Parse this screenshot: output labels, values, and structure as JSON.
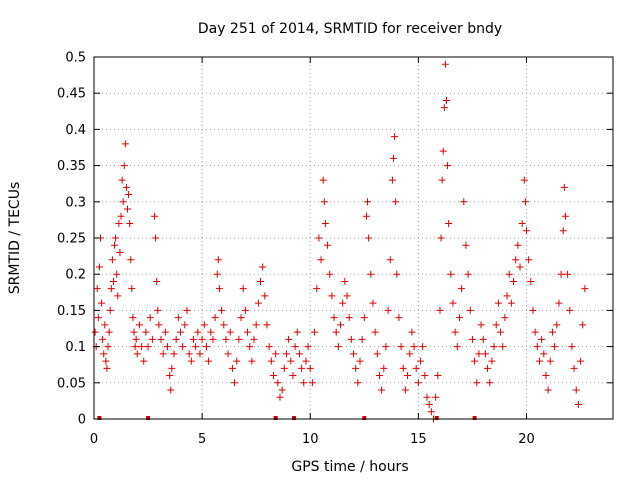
{
  "chart_data": {
    "type": "scatter",
    "title": "Day 251 of 2014, SRMTID for receiver bndy",
    "xlabel": "GPS time / hours",
    "ylabel": "SRMTID / TECUs",
    "xlim": [
      0,
      24
    ],
    "ylim": [
      0,
      0.5
    ],
    "xticks": [
      0,
      5,
      10,
      15,
      20
    ],
    "xtick_labels": [
      "0",
      "5",
      "10",
      "15",
      "20"
    ],
    "yticks": [
      0,
      0.05,
      0.1,
      0.15,
      0.2,
      0.25,
      0.3,
      0.35,
      0.4,
      0.45,
      0.5
    ],
    "ytick_labels": [
      "0",
      "0.05",
      "0.1",
      "0.15",
      "0.2",
      "0.25",
      "0.3",
      "0.35",
      "0.4",
      "0.45",
      "0.5"
    ],
    "grid": true,
    "marker": "+",
    "marker_color": "#e00000",
    "x_range_of_data": [
      0,
      22.7
    ],
    "zero_markers_x": [
      0.25,
      2.5,
      8.4,
      9.25,
      12.5,
      15.85,
      17.6
    ],
    "points": [
      [
        0.05,
        0.12
      ],
      [
        0.1,
        0.1
      ],
      [
        0.15,
        0.18
      ],
      [
        0.2,
        0.14
      ],
      [
        0.25,
        0.21
      ],
      [
        0.3,
        0.25
      ],
      [
        0.35,
        0.16
      ],
      [
        0.4,
        0.11
      ],
      [
        0.45,
        0.09
      ],
      [
        0.5,
        0.13
      ],
      [
        0.55,
        0.08
      ],
      [
        0.6,
        0.07
      ],
      [
        0.65,
        0.1
      ],
      [
        0.7,
        0.12
      ],
      [
        0.75,
        0.15
      ],
      [
        0.8,
        0.18
      ],
      [
        0.85,
        0.22
      ],
      [
        0.9,
        0.19
      ],
      [
        0.95,
        0.24
      ],
      [
        1.0,
        0.25
      ],
      [
        1.05,
        0.2
      ],
      [
        1.1,
        0.17
      ],
      [
        1.15,
        0.27
      ],
      [
        1.2,
        0.23
      ],
      [
        1.25,
        0.28
      ],
      [
        1.3,
        0.33
      ],
      [
        1.35,
        0.3
      ],
      [
        1.4,
        0.35
      ],
      [
        1.45,
        0.38
      ],
      [
        1.5,
        0.32
      ],
      [
        1.55,
        0.29
      ],
      [
        1.6,
        0.31
      ],
      [
        1.65,
        0.27
      ],
      [
        1.7,
        0.22
      ],
      [
        1.75,
        0.18
      ],
      [
        1.8,
        0.14
      ],
      [
        1.85,
        0.12
      ],
      [
        1.9,
        0.1
      ],
      [
        1.95,
        0.11
      ],
      [
        2.0,
        0.09
      ],
      [
        2.1,
        0.13
      ],
      [
        2.2,
        0.1
      ],
      [
        2.3,
        0.08
      ],
      [
        2.4,
        0.12
      ],
      [
        2.5,
        0.1
      ],
      [
        2.6,
        0.14
      ],
      [
        2.7,
        0.11
      ],
      [
        2.8,
        0.28
      ],
      [
        2.85,
        0.25
      ],
      [
        2.9,
        0.19
      ],
      [
        2.95,
        0.15
      ],
      [
        3.0,
        0.13
      ],
      [
        3.1,
        0.11
      ],
      [
        3.2,
        0.09
      ],
      [
        3.3,
        0.12
      ],
      [
        3.4,
        0.1
      ],
      [
        3.5,
        0.06
      ],
      [
        3.55,
        0.04
      ],
      [
        3.6,
        0.07
      ],
      [
        3.7,
        0.09
      ],
      [
        3.8,
        0.11
      ],
      [
        3.9,
        0.14
      ],
      [
        4.0,
        0.12
      ],
      [
        4.1,
        0.1
      ],
      [
        4.2,
        0.13
      ],
      [
        4.3,
        0.15
      ],
      [
        4.4,
        0.09
      ],
      [
        4.5,
        0.08
      ],
      [
        4.6,
        0.11
      ],
      [
        4.7,
        0.1
      ],
      [
        4.8,
        0.12
      ],
      [
        4.9,
        0.09
      ],
      [
        5.0,
        0.11
      ],
      [
        5.1,
        0.13
      ],
      [
        5.2,
        0.1
      ],
      [
        5.3,
        0.08
      ],
      [
        5.4,
        0.12
      ],
      [
        5.5,
        0.11
      ],
      [
        5.6,
        0.14
      ],
      [
        5.7,
        0.2
      ],
      [
        5.75,
        0.22
      ],
      [
        5.8,
        0.18
      ],
      [
        5.9,
        0.15
      ],
      [
        6.0,
        0.13
      ],
      [
        6.1,
        0.11
      ],
      [
        6.2,
        0.09
      ],
      [
        6.3,
        0.12
      ],
      [
        6.4,
        0.07
      ],
      [
        6.5,
        0.05
      ],
      [
        6.6,
        0.08
      ],
      [
        6.7,
        0.11
      ],
      [
        6.8,
        0.14
      ],
      [
        6.9,
        0.18
      ],
      [
        7.0,
        0.15
      ],
      [
        7.1,
        0.12
      ],
      [
        7.2,
        0.1
      ],
      [
        7.3,
        0.08
      ],
      [
        7.4,
        0.11
      ],
      [
        7.5,
        0.13
      ],
      [
        7.6,
        0.16
      ],
      [
        7.7,
        0.19
      ],
      [
        7.8,
        0.21
      ],
      [
        7.9,
        0.17
      ],
      [
        8.0,
        0.13
      ],
      [
        8.1,
        0.1
      ],
      [
        8.2,
        0.08
      ],
      [
        8.3,
        0.06
      ],
      [
        8.4,
        0.09
      ],
      [
        8.5,
        0.05
      ],
      [
        8.6,
        0.03
      ],
      [
        8.7,
        0.04
      ],
      [
        8.8,
        0.07
      ],
      [
        8.9,
        0.09
      ],
      [
        9.0,
        0.11
      ],
      [
        9.1,
        0.08
      ],
      [
        9.2,
        0.06
      ],
      [
        9.3,
        0.1
      ],
      [
        9.4,
        0.12
      ],
      [
        9.5,
        0.09
      ],
      [
        9.6,
        0.07
      ],
      [
        9.7,
        0.05
      ],
      [
        9.8,
        0.08
      ],
      [
        9.9,
        0.1
      ],
      [
        10.0,
        0.07
      ],
      [
        10.1,
        0.05
      ],
      [
        10.2,
        0.12
      ],
      [
        10.3,
        0.18
      ],
      [
        10.4,
        0.25
      ],
      [
        10.5,
        0.22
      ],
      [
        10.6,
        0.33
      ],
      [
        10.65,
        0.3
      ],
      [
        10.7,
        0.27
      ],
      [
        10.8,
        0.24
      ],
      [
        10.9,
        0.2
      ],
      [
        11.0,
        0.17
      ],
      [
        11.1,
        0.14
      ],
      [
        11.2,
        0.12
      ],
      [
        11.3,
        0.1
      ],
      [
        11.4,
        0.13
      ],
      [
        11.5,
        0.16
      ],
      [
        11.6,
        0.19
      ],
      [
        11.7,
        0.17
      ],
      [
        11.8,
        0.14
      ],
      [
        11.9,
        0.11
      ],
      [
        12.0,
        0.09
      ],
      [
        12.1,
        0.07
      ],
      [
        12.2,
        0.05
      ],
      [
        12.3,
        0.08
      ],
      [
        12.4,
        0.11
      ],
      [
        12.5,
        0.14
      ],
      [
        12.6,
        0.28
      ],
      [
        12.65,
        0.3
      ],
      [
        12.7,
        0.25
      ],
      [
        12.8,
        0.2
      ],
      [
        12.9,
        0.16
      ],
      [
        13.0,
        0.12
      ],
      [
        13.1,
        0.09
      ],
      [
        13.2,
        0.06
      ],
      [
        13.3,
        0.04
      ],
      [
        13.4,
        0.07
      ],
      [
        13.5,
        0.1
      ],
      [
        13.6,
        0.15
      ],
      [
        13.7,
        0.22
      ],
      [
        13.8,
        0.33
      ],
      [
        13.85,
        0.36
      ],
      [
        13.9,
        0.39
      ],
      [
        13.95,
        0.3
      ],
      [
        14.0,
        0.2
      ],
      [
        14.1,
        0.14
      ],
      [
        14.2,
        0.1
      ],
      [
        14.3,
        0.07
      ],
      [
        14.4,
        0.04
      ],
      [
        14.5,
        0.06
      ],
      [
        14.6,
        0.09
      ],
      [
        14.7,
        0.12
      ],
      [
        14.8,
        0.1
      ],
      [
        14.9,
        0.07
      ],
      [
        15.0,
        0.05
      ],
      [
        15.1,
        0.08
      ],
      [
        15.2,
        0.1
      ],
      [
        15.3,
        0.06
      ],
      [
        15.4,
        0.03
      ],
      [
        15.5,
        0.02
      ],
      [
        15.6,
        0.01
      ],
      [
        15.7,
        0.0
      ],
      [
        15.8,
        0.03
      ],
      [
        15.9,
        0.06
      ],
      [
        16.0,
        0.15
      ],
      [
        16.05,
        0.25
      ],
      [
        16.1,
        0.33
      ],
      [
        16.15,
        0.37
      ],
      [
        16.2,
        0.43
      ],
      [
        16.25,
        0.49
      ],
      [
        16.3,
        0.44
      ],
      [
        16.35,
        0.35
      ],
      [
        16.4,
        0.27
      ],
      [
        16.5,
        0.2
      ],
      [
        16.6,
        0.16
      ],
      [
        16.7,
        0.12
      ],
      [
        16.8,
        0.1
      ],
      [
        16.9,
        0.14
      ],
      [
        17.0,
        0.18
      ],
      [
        17.1,
        0.3
      ],
      [
        17.2,
        0.24
      ],
      [
        17.3,
        0.2
      ],
      [
        17.4,
        0.15
      ],
      [
        17.5,
        0.11
      ],
      [
        17.6,
        0.08
      ],
      [
        17.7,
        0.05
      ],
      [
        17.8,
        0.09
      ],
      [
        17.9,
        0.13
      ],
      [
        18.0,
        0.11
      ],
      [
        18.1,
        0.09
      ],
      [
        18.2,
        0.07
      ],
      [
        18.3,
        0.05
      ],
      [
        18.4,
        0.08
      ],
      [
        18.5,
        0.1
      ],
      [
        18.6,
        0.13
      ],
      [
        18.7,
        0.16
      ],
      [
        18.8,
        0.12
      ],
      [
        18.9,
        0.1
      ],
      [
        19.0,
        0.14
      ],
      [
        19.1,
        0.17
      ],
      [
        19.2,
        0.2
      ],
      [
        19.3,
        0.16
      ],
      [
        19.4,
        0.19
      ],
      [
        19.5,
        0.22
      ],
      [
        19.6,
        0.24
      ],
      [
        19.7,
        0.21
      ],
      [
        19.8,
        0.27
      ],
      [
        19.9,
        0.33
      ],
      [
        19.95,
        0.3
      ],
      [
        20.0,
        0.26
      ],
      [
        20.1,
        0.22
      ],
      [
        20.2,
        0.19
      ],
      [
        20.3,
        0.15
      ],
      [
        20.4,
        0.12
      ],
      [
        20.5,
        0.1
      ],
      [
        20.6,
        0.08
      ],
      [
        20.7,
        0.11
      ],
      [
        20.8,
        0.09
      ],
      [
        20.9,
        0.06
      ],
      [
        21.0,
        0.04
      ],
      [
        21.1,
        0.08
      ],
      [
        21.2,
        0.12
      ],
      [
        21.3,
        0.1
      ],
      [
        21.4,
        0.13
      ],
      [
        21.5,
        0.16
      ],
      [
        21.6,
        0.2
      ],
      [
        21.7,
        0.26
      ],
      [
        21.75,
        0.32
      ],
      [
        21.8,
        0.28
      ],
      [
        21.9,
        0.2
      ],
      [
        22.0,
        0.15
      ],
      [
        22.1,
        0.1
      ],
      [
        22.2,
        0.07
      ],
      [
        22.3,
        0.04
      ],
      [
        22.4,
        0.02
      ],
      [
        22.5,
        0.08
      ],
      [
        22.6,
        0.13
      ],
      [
        22.7,
        0.18
      ]
    ]
  }
}
